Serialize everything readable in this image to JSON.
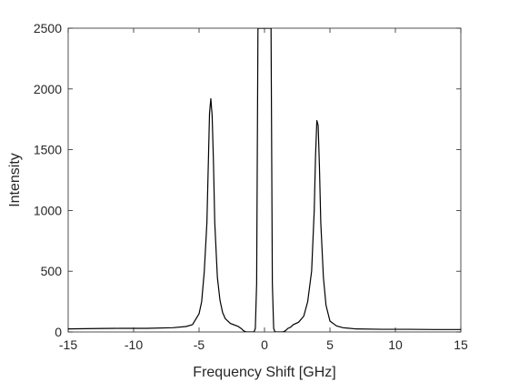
{
  "chart_data": {
    "type": "line",
    "title": "",
    "xlabel": "Frequency Shift [GHz]",
    "ylabel": "Intensity",
    "xlim": [
      -15,
      15
    ],
    "ylim": [
      0,
      2500
    ],
    "xticks": [
      -15,
      -10,
      -5,
      0,
      5,
      10,
      15
    ],
    "yticks": [
      0,
      500,
      1000,
      1500,
      2000,
      2500
    ],
    "xtick_labels": [
      "-15",
      "-10",
      "-5",
      "0",
      "5",
      "10",
      "15"
    ],
    "ytick_labels": [
      "0",
      "500",
      "1000",
      "1500",
      "2000",
      "2500"
    ],
    "grid": false,
    "legend": "none",
    "line_color": "#000000",
    "series": [
      {
        "x": [
          -15,
          -13,
          -11,
          -9,
          -7,
          -6,
          -5.5,
          -5.0,
          -4.8,
          -4.6,
          -4.4,
          -4.3,
          -4.2,
          -4.1,
          -4.0,
          -3.9,
          -3.8,
          -3.6,
          -3.4,
          -3.2,
          -3.0,
          -2.6,
          -2.0,
          -1.8,
          -1.6,
          -1.4,
          -1.2,
          -1.0,
          -0.8,
          -0.7,
          -0.6,
          -0.5,
          0.5,
          0.6,
          0.7,
          0.8,
          1.0,
          1.2,
          1.4,
          1.6,
          1.8,
          2.0,
          2.2,
          2.6,
          3.0,
          3.3,
          3.6,
          3.8,
          3.9,
          4.0,
          4.1,
          4.2,
          4.3,
          4.5,
          4.7,
          5.0,
          5.5,
          6.0,
          7,
          9,
          11,
          13,
          15
        ],
        "y": [
          25,
          28,
          30,
          30,
          35,
          45,
          60,
          150,
          250,
          500,
          900,
          1350,
          1800,
          1920,
          1780,
          1400,
          900,
          450,
          260,
          160,
          110,
          70,
          45,
          30,
          10,
          0,
          0,
          0,
          0,
          30,
          400,
          2500,
          2500,
          400,
          30,
          0,
          0,
          0,
          0,
          10,
          30,
          40,
          60,
          80,
          130,
          250,
          500,
          1000,
          1450,
          1740,
          1700,
          1350,
          900,
          450,
          220,
          90,
          50,
          35,
          25,
          22,
          22,
          20,
          20
        ]
      }
    ]
  }
}
